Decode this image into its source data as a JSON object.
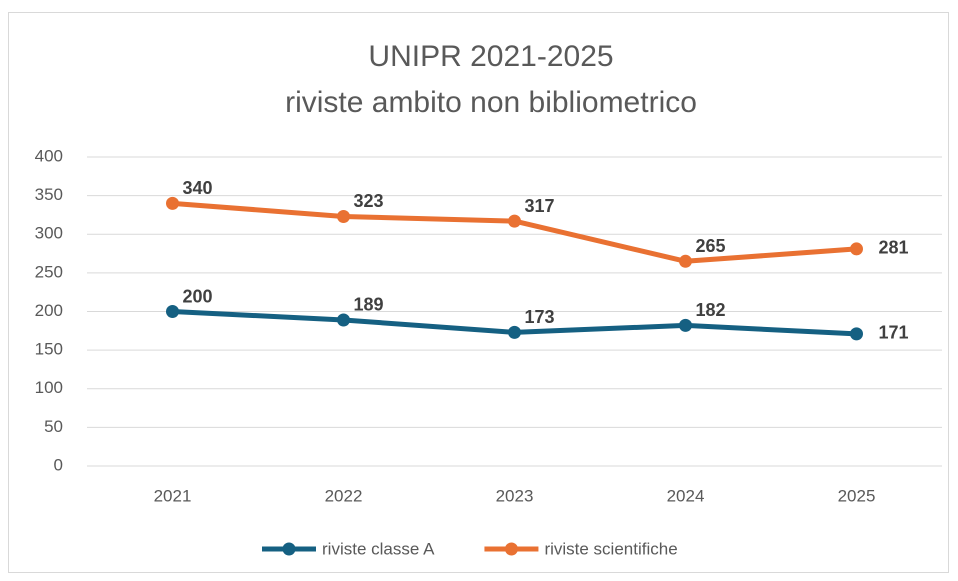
{
  "chart_data": {
    "type": "line",
    "title": "UNIPR 2021-2025",
    "subtitle": "riviste ambito non bibliometrico",
    "categories": [
      "2021",
      "2022",
      "2023",
      "2024",
      "2025"
    ],
    "series": [
      {
        "name": "riviste classe A",
        "color": "#156082",
        "values": [
          200,
          189,
          173,
          182,
          171
        ]
      },
      {
        "name": "riviste scientifiche",
        "color": "#e97132",
        "values": [
          340,
          323,
          317,
          265,
          281
        ]
      }
    ],
    "ylim": [
      0,
      400
    ],
    "yticks": [
      0,
      50,
      100,
      150,
      200,
      250,
      300,
      350,
      400
    ],
    "grid": true,
    "legend": "bottom"
  }
}
